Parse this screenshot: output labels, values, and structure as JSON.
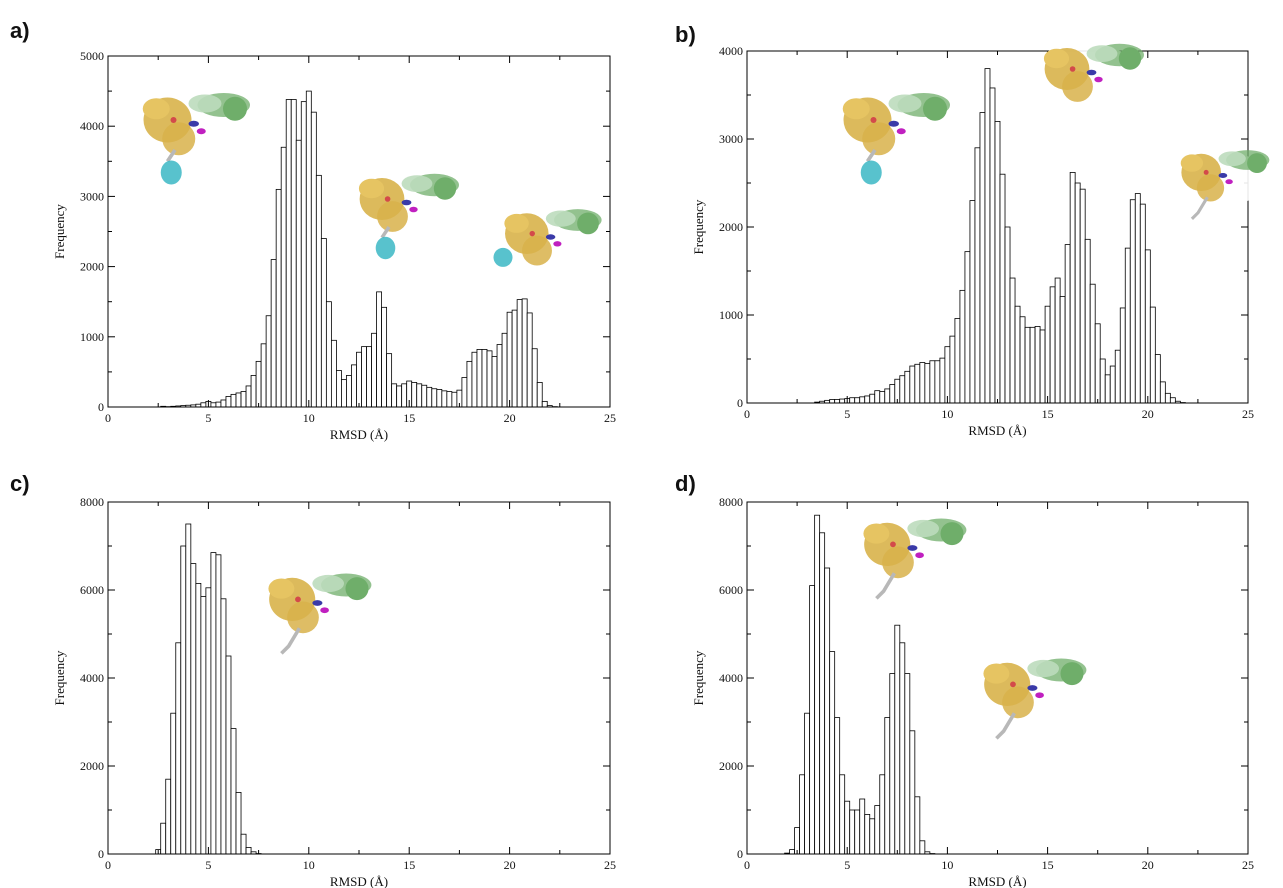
{
  "figure": {
    "panels": [
      "a)",
      "b)",
      "c)",
      "d)"
    ]
  },
  "colors": {
    "bar_fill": "#ffffff",
    "bar_stroke": "#000000",
    "protein_gold": "#d8b24a",
    "protein_green": "#6fae6a",
    "protein_blue": "#3a3aa8",
    "protein_magenta": "#c020c0",
    "protein_cyan": "#3bb7c4",
    "protein_grey": "#b8b8b8"
  },
  "chart_data": [
    {
      "panel": "a)",
      "type": "bar",
      "title": "",
      "xlabel": "RMSD (Å)",
      "ylabel": "Frequency",
      "xlim": [
        0,
        25
      ],
      "ylim": [
        0,
        5000
      ],
      "xticks": [
        0,
        5,
        10,
        15,
        20,
        25
      ],
      "yticks": [
        0,
        1000,
        2000,
        3000,
        4000,
        5000
      ],
      "bin_width": 0.25,
      "x": [
        2.75,
        3.0,
        3.25,
        3.5,
        3.75,
        4.0,
        4.25,
        4.5,
        4.75,
        5.0,
        5.25,
        5.5,
        5.75,
        6.0,
        6.25,
        6.5,
        6.75,
        7.0,
        7.25,
        7.5,
        7.75,
        8.0,
        8.25,
        8.5,
        8.75,
        9.0,
        9.25,
        9.5,
        9.75,
        10.0,
        10.25,
        10.5,
        10.75,
        11.0,
        11.25,
        11.5,
        11.75,
        12.0,
        12.25,
        12.5,
        12.75,
        13.0,
        13.25,
        13.5,
        13.75,
        14.0,
        14.25,
        14.5,
        14.75,
        15.0,
        15.25,
        15.5,
        15.75,
        16.0,
        16.25,
        16.5,
        16.75,
        17.0,
        17.25,
        17.5,
        17.75,
        18.0,
        18.25,
        18.5,
        18.75,
        19.0,
        19.25,
        19.5,
        19.75,
        20.0,
        20.25,
        20.5,
        20.75,
        21.0,
        21.25,
        21.5,
        21.75,
        22.0,
        22.25,
        22.5,
        22.75,
        23.0,
        23.25,
        23.5,
        23.75
      ],
      "values": [
        10,
        5,
        10,
        15,
        20,
        25,
        30,
        40,
        60,
        80,
        60,
        70,
        100,
        150,
        180,
        200,
        220,
        300,
        450,
        650,
        900,
        1300,
        2100,
        3100,
        3700,
        4380,
        4380,
        3800,
        4350,
        4500,
        4200,
        3300,
        2400,
        1500,
        950,
        520,
        390,
        450,
        600,
        780,
        860,
        860,
        1050,
        1640,
        1420,
        760,
        330,
        300,
        330,
        370,
        350,
        330,
        310,
        280,
        260,
        250,
        230,
        220,
        210,
        240,
        420,
        650,
        780,
        820,
        820,
        800,
        720,
        890,
        1050,
        1350,
        1380,
        1530,
        1540,
        1340,
        830,
        350,
        80,
        20,
        5,
        0,
        0,
        0,
        0,
        0,
        0
      ]
    },
    {
      "panel": "b)",
      "type": "bar",
      "title": "",
      "xlabel": "RMSD (Å)",
      "ylabel": "Frequency",
      "xlim": [
        0,
        25
      ],
      "ylim": [
        0,
        4000
      ],
      "xticks": [
        0,
        5,
        10,
        15,
        20,
        25
      ],
      "yticks": [
        0,
        1000,
        2000,
        3000,
        4000
      ],
      "bin_width": 0.25,
      "x": [
        3.5,
        3.75,
        4.0,
        4.25,
        4.5,
        4.75,
        5.0,
        5.25,
        5.5,
        5.75,
        6.0,
        6.25,
        6.5,
        6.75,
        7.0,
        7.25,
        7.5,
        7.75,
        8.0,
        8.25,
        8.5,
        8.75,
        9.0,
        9.25,
        9.5,
        9.75,
        10.0,
        10.25,
        10.5,
        10.75,
        11.0,
        11.25,
        11.5,
        11.75,
        12.0,
        12.25,
        12.5,
        12.75,
        13.0,
        13.25,
        13.5,
        13.75,
        14.0,
        14.25,
        14.5,
        14.75,
        15.0,
        15.25,
        15.5,
        15.75,
        16.0,
        16.25,
        16.5,
        16.75,
        17.0,
        17.25,
        17.5,
        17.75,
        18.0,
        18.25,
        18.5,
        18.75,
        19.0,
        19.25,
        19.5,
        19.75,
        20.0,
        20.25,
        20.5,
        20.75,
        21.0,
        21.25,
        21.5,
        21.75,
        22.0,
        22.25,
        22.5,
        22.75,
        23.0,
        23.25
      ],
      "values": [
        10,
        20,
        30,
        40,
        40,
        45,
        50,
        60,
        60,
        70,
        80,
        100,
        140,
        130,
        160,
        210,
        270,
        310,
        360,
        420,
        440,
        460,
        450,
        480,
        480,
        510,
        640,
        760,
        960,
        1280,
        1720,
        2300,
        2900,
        3300,
        3800,
        3580,
        3200,
        2600,
        2000,
        1420,
        1100,
        980,
        860,
        860,
        870,
        830,
        1100,
        1320,
        1420,
        1210,
        1800,
        2620,
        2500,
        2430,
        1860,
        1350,
        900,
        500,
        320,
        420,
        600,
        1080,
        1760,
        2310,
        2380,
        2260,
        1740,
        1090,
        550,
        240,
        110,
        60,
        20,
        5,
        0,
        0,
        0,
        0,
        0,
        0
      ]
    },
    {
      "panel": "c)",
      "type": "bar",
      "title": "",
      "xlabel": "RMSD (Å)",
      "ylabel": "Frequency",
      "xlim": [
        0,
        25
      ],
      "ylim": [
        0,
        8000
      ],
      "xticks": [
        0,
        5,
        10,
        15,
        20,
        25
      ],
      "yticks": [
        0,
        2000,
        4000,
        6000,
        8000
      ],
      "bin_width": 0.25,
      "x": [
        2.5,
        2.75,
        3.0,
        3.25,
        3.5,
        3.75,
        4.0,
        4.25,
        4.5,
        4.75,
        5.0,
        5.25,
        5.5,
        5.75,
        6.0,
        6.25,
        6.5,
        6.75,
        7.0,
        7.25,
        7.5
      ],
      "values": [
        100,
        700,
        1700,
        3200,
        4800,
        7000,
        7500,
        6600,
        6150,
        5850,
        6050,
        6850,
        6800,
        5800,
        4500,
        2850,
        1400,
        450,
        150,
        50,
        10
      ]
    },
    {
      "panel": "d)",
      "type": "bar",
      "title": "",
      "xlabel": "RMSD (Å)",
      "ylabel": "Frequency",
      "xlim": [
        0,
        25
      ],
      "ylim": [
        0,
        8000
      ],
      "xticks": [
        0,
        5,
        10,
        15,
        20,
        25
      ],
      "yticks": [
        0,
        2000,
        4000,
        6000,
        8000
      ],
      "bin_width": 0.25,
      "x": [
        2.0,
        2.25,
        2.5,
        2.75,
        3.0,
        3.25,
        3.5,
        3.75,
        4.0,
        4.25,
        4.5,
        4.75,
        5.0,
        5.25,
        5.5,
        5.75,
        6.0,
        6.25,
        6.5,
        6.75,
        7.0,
        7.25,
        7.5,
        7.75,
        8.0,
        8.25,
        8.5,
        8.75,
        9.0,
        9.25,
        9.5,
        9.75,
        10.0
      ],
      "values": [
        20,
        100,
        600,
        1800,
        3200,
        6100,
        7700,
        7300,
        6500,
        4600,
        3100,
        1800,
        1200,
        1000,
        1000,
        1250,
        900,
        800,
        1100,
        1800,
        3100,
        4100,
        5200,
        4800,
        4100,
        2800,
        1300,
        300,
        50,
        10,
        0,
        0,
        0
      ]
    }
  ]
}
